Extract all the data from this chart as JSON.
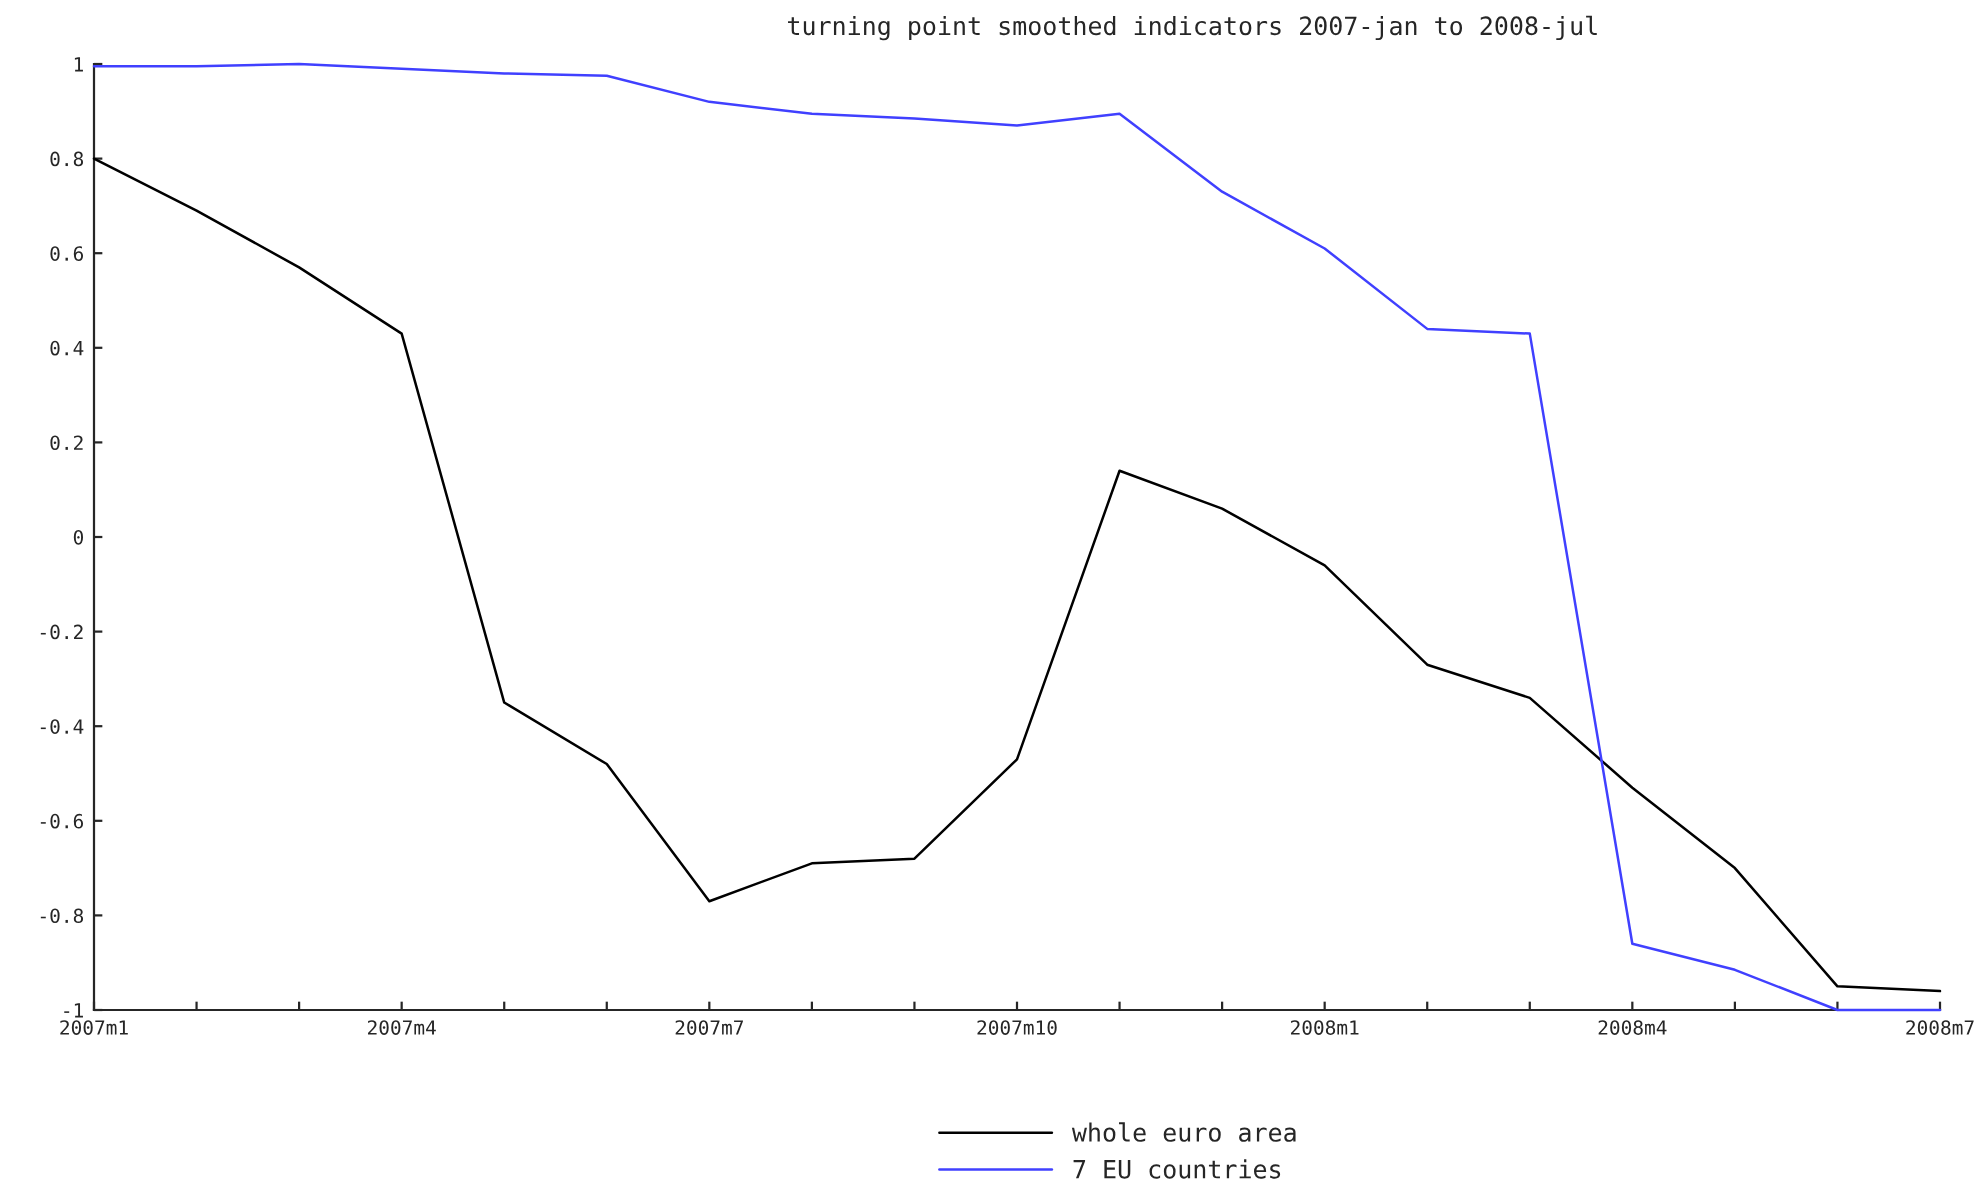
{
  "chart_data": {
    "type": "line",
    "title": "turning point smoothed indicators 2007-jan to 2008-jul",
    "categories": [
      "2007m1",
      null,
      null,
      "2007m4",
      null,
      null,
      "2007m7",
      null,
      null,
      "2007m10",
      null,
      null,
      "2008m1",
      null,
      null,
      "2008m4",
      null,
      null,
      "2008m7"
    ],
    "series": [
      {
        "name": "whole euro area",
        "color": "#000000",
        "values": [
          0.8,
          0.69,
          0.57,
          0.43,
          -0.35,
          -0.48,
          -0.77,
          -0.69,
          -0.68,
          -0.47,
          0.14,
          0.06,
          -0.06,
          -0.27,
          -0.34,
          -0.53,
          -0.7,
          -0.95,
          -0.96
        ]
      },
      {
        "name": "7 EU countries",
        "color": "#4040ff",
        "values": [
          0.995,
          0.995,
          1.0,
          0.99,
          0.98,
          0.975,
          0.92,
          0.895,
          0.885,
          0.87,
          0.895,
          0.73,
          0.61,
          0.44,
          0.43,
          -0.86,
          -0.915,
          -1.0,
          -1.0
        ]
      }
    ],
    "ylim": [
      -1,
      1
    ],
    "yticks": [
      -1,
      -0.8,
      -0.6,
      -0.4,
      -0.2,
      0,
      0.2,
      0.4,
      0.6,
      0.8,
      1
    ],
    "grid": false,
    "legend": "bottom",
    "marker": "none",
    "line_style": "solid"
  }
}
